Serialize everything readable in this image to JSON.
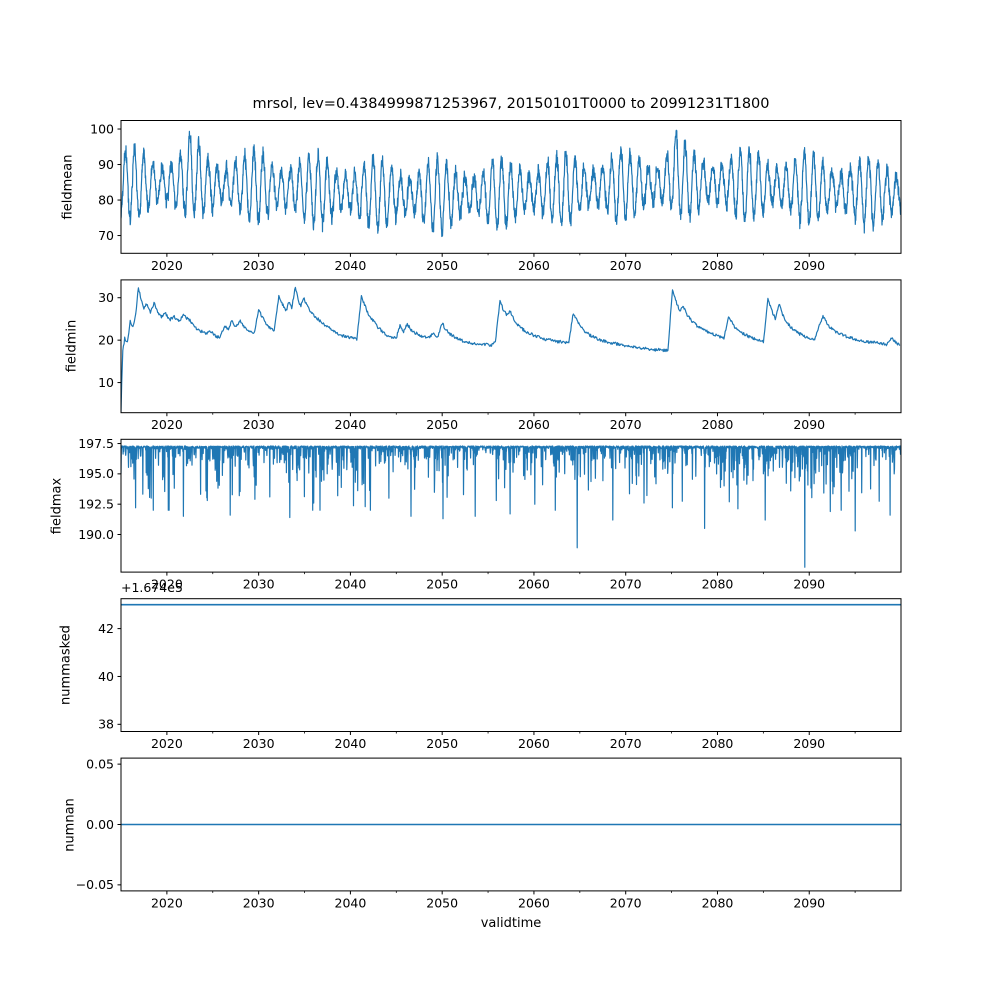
{
  "figure": {
    "title": "mrsol, lev=0.4384999871253967, 20150101T0000 to 20991231T1800",
    "xlabel": "validtime",
    "background_color": "#ffffff",
    "line_color": "#1f77b4",
    "text_color": "#000000",
    "spine_color": "#000000"
  },
  "chart_data": {
    "type": "line",
    "title": "mrsol, lev=0.4384999871253967, 20150101T0000 to 20991231T1800",
    "xlabel": "validtime",
    "legend": "none",
    "grid": false,
    "x": {
      "xlim": [
        2015.0,
        2100.0
      ],
      "major_ticks": [
        2020,
        2030,
        2040,
        2050,
        2060,
        2070,
        2080,
        2090
      ],
      "major_tick_labels": [
        "2020",
        "2030",
        "2040",
        "2050",
        "2060",
        "2070",
        "2080",
        "2090"
      ],
      "minor_ticks": [
        2025,
        2035,
        2045,
        2055,
        2065,
        2075,
        2085,
        2095
      ]
    },
    "subplots": [
      {
        "ylabel": "fieldmean",
        "ylim": [
          65.0,
          102.4
        ],
        "yticks": [
          70,
          80,
          90,
          100
        ],
        "ytick_labels": [
          "70",
          "80",
          "90",
          "100"
        ],
        "summary": {
          "mean": 83,
          "min": 66.8,
          "max": 100.8,
          "pattern": "annual oscillation with noise, peaks near 100 around 2022 and 2075"
        },
        "series": {
          "kind": "seasonal_noise",
          "seed": 12345,
          "n": 3400,
          "base": 83.0,
          "slow_amp": 1.6,
          "slow_period": 58,
          "seasonal_amp": 7.2,
          "amp_jitter": 2.6,
          "amp_jitter_period": 6.7,
          "noise": 2.6,
          "clip_min": 66.8,
          "clip_max": 100.8,
          "bumps": [
            {
              "year": 2022.8,
              "amp": 5.5,
              "width": 0.5
            },
            {
              "year": 2075.4,
              "amp": 6.0,
              "width": 0.6
            }
          ]
        }
      },
      {
        "ylabel": "fieldmin",
        "ylim": [
          2.9,
          34.2
        ],
        "yticks": [
          10,
          20,
          30
        ],
        "ytick_labels": [
          "10",
          "20",
          "30"
        ],
        "summary": {
          "min": 3.0,
          "max": 32.6,
          "pattern": "sawtooth: sharp rises then slow decay, starts near 3 in 2015"
        },
        "series": {
          "kind": "keypoints_noise",
          "seed": 99,
          "step": 0.07,
          "noise": 0.35,
          "keypoints": [
            [
              2015.0,
              3.0
            ],
            [
              2015.08,
              10.0
            ],
            [
              2015.2,
              17.5
            ],
            [
              2015.4,
              20.5
            ],
            [
              2015.7,
              19.5
            ],
            [
              2016.0,
              24.5
            ],
            [
              2016.3,
              23.0
            ],
            [
              2016.6,
              26.0
            ],
            [
              2016.9,
              32.3
            ],
            [
              2017.2,
              29.5
            ],
            [
              2017.5,
              27.5
            ],
            [
              2017.8,
              28.5
            ],
            [
              2018.2,
              26.5
            ],
            [
              2018.6,
              28.8
            ],
            [
              2019.0,
              26.5
            ],
            [
              2019.4,
              25.5
            ],
            [
              2019.8,
              26.5
            ],
            [
              2020.3,
              24.8
            ],
            [
              2020.8,
              25.5
            ],
            [
              2021.3,
              24.5
            ],
            [
              2021.8,
              25.8
            ],
            [
              2022.3,
              25.0
            ],
            [
              2022.8,
              24.0
            ],
            [
              2023.3,
              22.5
            ],
            [
              2023.8,
              22.0
            ],
            [
              2024.3,
              21.5
            ],
            [
              2024.8,
              22.0
            ],
            [
              2025.3,
              21.0
            ],
            [
              2025.8,
              20.5
            ],
            [
              2026.3,
              23.5
            ],
            [
              2026.7,
              22.5
            ],
            [
              2027.1,
              24.8
            ],
            [
              2027.5,
              23.0
            ],
            [
              2028.0,
              24.5
            ],
            [
              2028.5,
              23.0
            ],
            [
              2029.0,
              22.0
            ],
            [
              2029.5,
              21.5
            ],
            [
              2030.0,
              27.0
            ],
            [
              2030.4,
              25.5
            ],
            [
              2030.8,
              24.0
            ],
            [
              2031.2,
              23.0
            ],
            [
              2031.7,
              22.3
            ],
            [
              2032.2,
              30.5
            ],
            [
              2032.6,
              28.5
            ],
            [
              2033.0,
              27.0
            ],
            [
              2033.3,
              29.0
            ],
            [
              2033.6,
              27.5
            ],
            [
              2034.0,
              32.6
            ],
            [
              2034.3,
              29.5
            ],
            [
              2034.6,
              28.0
            ],
            [
              2034.9,
              30.0
            ],
            [
              2035.3,
              28.0
            ],
            [
              2035.7,
              26.5
            ],
            [
              2036.2,
              25.5
            ],
            [
              2036.7,
              24.5
            ],
            [
              2037.2,
              23.5
            ],
            [
              2037.7,
              22.8
            ],
            [
              2038.2,
              22.0
            ],
            [
              2038.7,
              21.5
            ],
            [
              2039.2,
              21.0
            ],
            [
              2039.7,
              20.8
            ],
            [
              2040.2,
              20.5
            ],
            [
              2040.7,
              20.3
            ],
            [
              2041.2,
              30.2
            ],
            [
              2041.6,
              28.0
            ],
            [
              2042.0,
              26.0
            ],
            [
              2042.5,
              24.5
            ],
            [
              2043.0,
              23.0
            ],
            [
              2043.5,
              22.0
            ],
            [
              2044.0,
              21.2
            ],
            [
              2044.5,
              20.8
            ],
            [
              2045.0,
              20.5
            ],
            [
              2045.4,
              23.5
            ],
            [
              2045.8,
              22.0
            ],
            [
              2046.2,
              23.8
            ],
            [
              2046.6,
              22.5
            ],
            [
              2047.0,
              21.8
            ],
            [
              2047.5,
              21.2
            ],
            [
              2048.0,
              20.8
            ],
            [
              2048.5,
              20.5
            ],
            [
              2049.0,
              21.5
            ],
            [
              2049.5,
              20.5
            ],
            [
              2050.0,
              24.0
            ],
            [
              2050.4,
              22.5
            ],
            [
              2050.8,
              21.5
            ],
            [
              2051.3,
              20.8
            ],
            [
              2051.8,
              20.3
            ],
            [
              2052.3,
              19.8
            ],
            [
              2052.8,
              19.5
            ],
            [
              2053.3,
              19.3
            ],
            [
              2053.8,
              19.0
            ],
            [
              2054.3,
              18.8
            ],
            [
              2054.8,
              19.2
            ],
            [
              2055.3,
              18.8
            ],
            [
              2055.8,
              19.5
            ],
            [
              2056.3,
              29.5
            ],
            [
              2056.6,
              27.5
            ],
            [
              2057.0,
              26.0
            ],
            [
              2057.4,
              27.0
            ],
            [
              2057.8,
              25.0
            ],
            [
              2058.3,
              23.5
            ],
            [
              2058.8,
              22.5
            ],
            [
              2059.3,
              21.8
            ],
            [
              2059.8,
              21.3
            ],
            [
              2060.3,
              20.8
            ],
            [
              2060.8,
              20.5
            ],
            [
              2061.3,
              20.2
            ],
            [
              2061.8,
              20.0
            ],
            [
              2062.3,
              19.8
            ],
            [
              2062.8,
              19.6
            ],
            [
              2063.3,
              19.5
            ],
            [
              2063.8,
              19.4
            ],
            [
              2064.3,
              26.5
            ],
            [
              2064.7,
              24.5
            ],
            [
              2065.1,
              23.0
            ],
            [
              2065.6,
              22.0
            ],
            [
              2066.1,
              21.2
            ],
            [
              2066.6,
              20.6
            ],
            [
              2067.1,
              20.2
            ],
            [
              2067.6,
              19.8
            ],
            [
              2068.1,
              19.5
            ],
            [
              2068.6,
              19.3
            ],
            [
              2069.1,
              19.1
            ],
            [
              2069.6,
              18.9
            ],
            [
              2070.1,
              18.7
            ],
            [
              2070.6,
              18.5
            ],
            [
              2071.1,
              18.3
            ],
            [
              2071.6,
              18.2
            ],
            [
              2072.1,
              18.0
            ],
            [
              2072.6,
              17.9
            ],
            [
              2073.1,
              17.8
            ],
            [
              2073.6,
              17.7
            ],
            [
              2074.1,
              17.6
            ],
            [
              2074.6,
              17.5
            ],
            [
              2075.1,
              32.0
            ],
            [
              2075.5,
              29.0
            ],
            [
              2075.9,
              27.0
            ],
            [
              2076.3,
              28.0
            ],
            [
              2076.7,
              26.0
            ],
            [
              2077.2,
              24.5
            ],
            [
              2077.7,
              23.5
            ],
            [
              2078.2,
              22.8
            ],
            [
              2078.7,
              22.2
            ],
            [
              2079.2,
              21.7
            ],
            [
              2079.7,
              21.2
            ],
            [
              2080.2,
              20.8
            ],
            [
              2080.7,
              20.5
            ],
            [
              2081.2,
              25.5
            ],
            [
              2081.6,
              24.0
            ],
            [
              2082.0,
              22.8
            ],
            [
              2082.5,
              22.0
            ],
            [
              2083.0,
              21.3
            ],
            [
              2083.5,
              20.8
            ],
            [
              2084.0,
              20.4
            ],
            [
              2084.5,
              20.0
            ],
            [
              2085.0,
              19.7
            ],
            [
              2085.5,
              29.5
            ],
            [
              2085.9,
              27.0
            ],
            [
              2086.3,
              25.0
            ],
            [
              2086.7,
              28.5
            ],
            [
              2087.1,
              26.0
            ],
            [
              2087.6,
              24.0
            ],
            [
              2088.1,
              22.8
            ],
            [
              2088.6,
              22.0
            ],
            [
              2089.1,
              21.3
            ],
            [
              2089.6,
              20.8
            ],
            [
              2090.1,
              20.4
            ],
            [
              2090.6,
              20.1
            ],
            [
              2091.1,
              23.5
            ],
            [
              2091.5,
              25.8
            ],
            [
              2091.9,
              24.0
            ],
            [
              2092.4,
              22.8
            ],
            [
              2092.9,
              22.0
            ],
            [
              2093.4,
              21.4
            ],
            [
              2093.9,
              21.0
            ],
            [
              2094.4,
              20.6
            ],
            [
              2094.9,
              20.3
            ],
            [
              2095.4,
              20.0
            ],
            [
              2095.9,
              19.8
            ],
            [
              2096.4,
              19.6
            ],
            [
              2096.9,
              19.4
            ],
            [
              2097.4,
              19.5
            ],
            [
              2097.9,
              19.2
            ],
            [
              2098.4,
              19.0
            ],
            [
              2098.9,
              20.5
            ],
            [
              2099.4,
              19.5
            ],
            [
              2099.9,
              18.8
            ]
          ]
        }
      },
      {
        "ylabel": "fieldmax",
        "ylim": [
          186.9,
          197.85
        ],
        "yticks": [
          190.0,
          192.5,
          195.0,
          197.5
        ],
        "ytick_labels": [
          "190.0",
          "192.5",
          "195.0",
          "197.5"
        ],
        "summary": {
          "ceiling": 197.3,
          "min": 187.3,
          "pattern": "flat ceiling near 197.3 with frequent narrow downward spikes; deepest 187.3 at 2089.5 and 188.9 at 2064.7"
        },
        "series": {
          "kind": "ceiling_spikes",
          "seed": 777,
          "n": 3000,
          "ceiling": 197.3,
          "ceiling_noise": 0.25,
          "spike_prob": 0.3,
          "spike_scale": 1.1,
          "spike_cap": 5.3,
          "deep_spikes": [
            [
              2016.6,
              192.2
            ],
            [
              2018.3,
              193.0
            ],
            [
              2021.8,
              191.5
            ],
            [
              2024.4,
              192.8
            ],
            [
              2026.9,
              191.6
            ],
            [
              2029.6,
              192.9
            ],
            [
              2031.2,
              193.1
            ],
            [
              2033.4,
              191.4
            ],
            [
              2036.0,
              192.6
            ],
            [
              2038.6,
              193.2
            ],
            [
              2041.6,
              192.3
            ],
            [
              2044.2,
              193.0
            ],
            [
              2046.6,
              191.5
            ],
            [
              2050.1,
              191.3
            ],
            [
              2053.6,
              191.5
            ],
            [
              2055.9,
              192.8
            ],
            [
              2057.4,
              191.7
            ],
            [
              2060.1,
              192.5
            ],
            [
              2064.7,
              188.9
            ],
            [
              2068.6,
              191.2
            ],
            [
              2072.0,
              192.6
            ],
            [
              2075.1,
              192.2
            ],
            [
              2078.6,
              190.5
            ],
            [
              2081.3,
              192.7
            ],
            [
              2085.2,
              191.2
            ],
            [
              2089.5,
              187.3
            ],
            [
              2092.3,
              191.9
            ],
            [
              2095.0,
              190.3
            ],
            [
              2098.8,
              191.6
            ]
          ]
        }
      },
      {
        "ylabel": "nummasked",
        "offset_text": "+1.674e5",
        "ylim": [
          167437.7,
          167443.25
        ],
        "yticks": [
          167438,
          167440,
          167442
        ],
        "ytick_labels": [
          "38",
          "40",
          "42"
        ],
        "summary": {
          "pattern": "constant value for whole period"
        },
        "series": {
          "kind": "constant",
          "value": 167443
        }
      },
      {
        "ylabel": "numnan",
        "ylim": [
          -0.055,
          0.055
        ],
        "yticks": [
          -0.05,
          0.0,
          0.05
        ],
        "ytick_labels": [
          "−0.05",
          "0.00",
          "0.05"
        ],
        "summary": {
          "pattern": "constant zero for whole period"
        },
        "series": {
          "kind": "constant",
          "value": 0.0
        }
      }
    ]
  }
}
